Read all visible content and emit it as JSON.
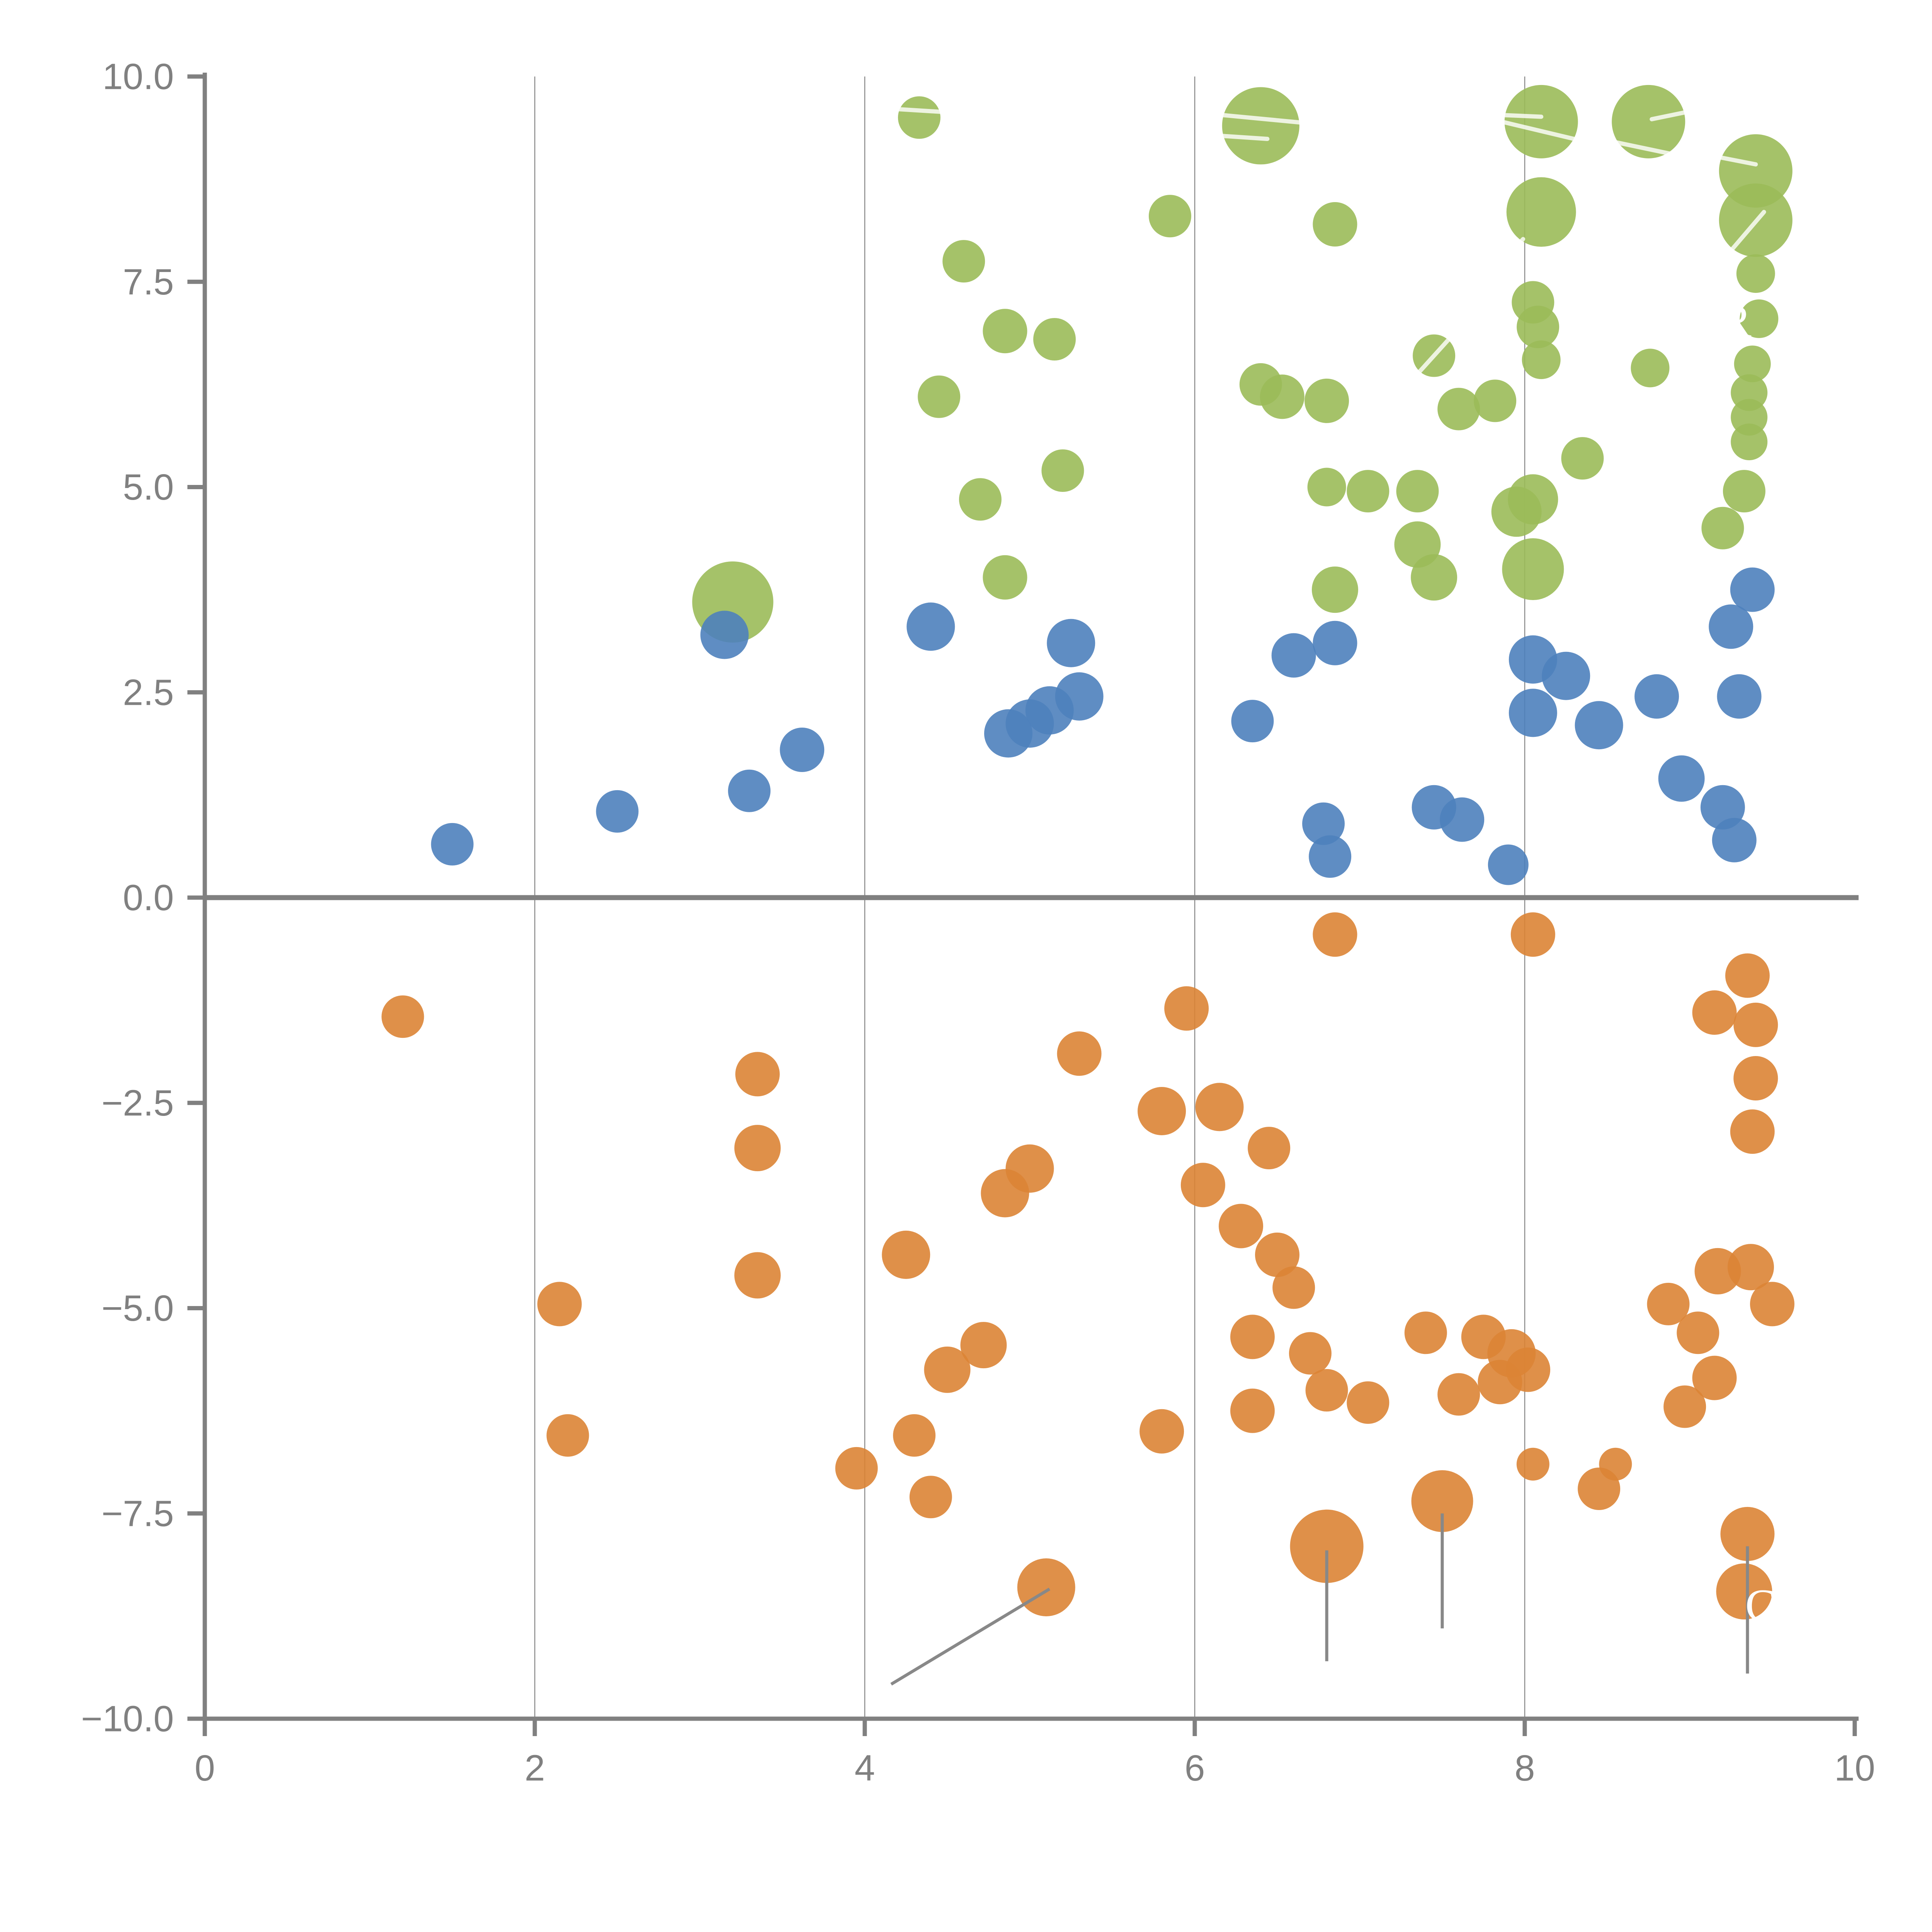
{
  "chart_data": {
    "type": "scatter",
    "title": "",
    "xlabel": "",
    "ylabel": "",
    "xlim": [
      0,
      10
    ],
    "ylim": [
      -10,
      10
    ],
    "x_ticks": [
      0,
      2,
      4,
      6,
      8,
      10
    ],
    "x_tick_labels": [
      "0",
      "2",
      "4",
      "6",
      "8",
      "10"
    ],
    "y_ticks": [
      10.0,
      7.5,
      5.0,
      2.5,
      0.0,
      -2.5,
      -5.0,
      -7.5,
      -10.0
    ],
    "y_tick_labels": [
      "10.0",
      "7.5",
      "5.0",
      "2.5",
      "0.0",
      "−2.5",
      "−5.0",
      "−7.5",
      "−10.0"
    ],
    "grid_x": [
      2,
      4,
      6,
      8
    ],
    "zero_line_y": 0,
    "legend_position": "none",
    "colors": {
      "green": "#9BBB59",
      "blue": "#4E81BD",
      "orange": "#DB8435",
      "axis": "#808080",
      "grid": "#888888",
      "leader_gray": "#888888",
      "leader_white": "#ffffff"
    },
    "series": [
      {
        "name": "green",
        "color": "#9BBB59",
        "points": [
          {
            "x": 4.33,
            "y": 9.5,
            "r": 11
          },
          {
            "x": 6.4,
            "y": 9.4,
            "r": 20
          },
          {
            "x": 8.1,
            "y": 9.45,
            "r": 19
          },
          {
            "x": 8.75,
            "y": 9.45,
            "r": 19
          },
          {
            "x": 9.4,
            "y": 8.85,
            "r": 19
          },
          {
            "x": 9.4,
            "y": 8.25,
            "r": 19
          },
          {
            "x": 9.4,
            "y": 7.6,
            "r": 10
          },
          {
            "x": 9.42,
            "y": 7.05,
            "r": 10
          },
          {
            "x": 6.85,
            "y": 8.2,
            "r": 11.5
          },
          {
            "x": 5.85,
            "y": 8.3,
            "r": 11
          },
          {
            "x": 4.6,
            "y": 7.75,
            "r": 11
          },
          {
            "x": 4.85,
            "y": 6.9,
            "r": 11.5
          },
          {
            "x": 5.15,
            "y": 6.8,
            "r": 11
          },
          {
            "x": 8.1,
            "y": 8.35,
            "r": 18
          },
          {
            "x": 8.05,
            "y": 7.25,
            "r": 11
          },
          {
            "x": 8.08,
            "y": 6.95,
            "r": 11
          },
          {
            "x": 8.1,
            "y": 6.55,
            "r": 10
          },
          {
            "x": 7.45,
            "y": 6.6,
            "r": 11
          },
          {
            "x": 8.76,
            "y": 6.45,
            "r": 10
          },
          {
            "x": 9.38,
            "y": 6.5,
            "r": 9.5
          },
          {
            "x": 9.36,
            "y": 6.15,
            "r": 9.5
          },
          {
            "x": 9.36,
            "y": 5.85,
            "r": 9.5
          },
          {
            "x": 9.36,
            "y": 5.55,
            "r": 9.5
          },
          {
            "x": 9.33,
            "y": 4.95,
            "r": 11
          },
          {
            "x": 9.2,
            "y": 4.5,
            "r": 11
          },
          {
            "x": 6.4,
            "y": 6.25,
            "r": 11
          },
          {
            "x": 6.53,
            "y": 6.1,
            "r": 11.5
          },
          {
            "x": 6.8,
            "y": 6.05,
            "r": 11.5
          },
          {
            "x": 7.6,
            "y": 5.95,
            "r": 11
          },
          {
            "x": 7.82,
            "y": 6.05,
            "r": 11
          },
          {
            "x": 4.45,
            "y": 6.1,
            "r": 11
          },
          {
            "x": 4.7,
            "y": 4.85,
            "r": 11
          },
          {
            "x": 5.2,
            "y": 5.2,
            "r": 11
          },
          {
            "x": 4.85,
            "y": 3.9,
            "r": 11.5
          },
          {
            "x": 6.8,
            "y": 5.0,
            "r": 10
          },
          {
            "x": 7.05,
            "y": 4.95,
            "r": 11
          },
          {
            "x": 7.35,
            "y": 4.95,
            "r": 11
          },
          {
            "x": 7.35,
            "y": 4.3,
            "r": 12
          },
          {
            "x": 7.45,
            "y": 3.9,
            "r": 12
          },
          {
            "x": 6.85,
            "y": 3.75,
            "r": 12
          },
          {
            "x": 7.95,
            "y": 4.7,
            "r": 13
          },
          {
            "x": 8.05,
            "y": 4.85,
            "r": 13
          },
          {
            "x": 8.05,
            "y": 4.0,
            "r": 16
          },
          {
            "x": 8.35,
            "y": 5.35,
            "r": 11
          },
          {
            "x": 3.2,
            "y": 3.6,
            "r": 21
          }
        ]
      },
      {
        "name": "blue",
        "color": "#4E81BD",
        "points": [
          {
            "x": 1.5,
            "y": 0.65,
            "r": 11
          },
          {
            "x": 2.5,
            "y": 1.05,
            "r": 11
          },
          {
            "x": 3.15,
            "y": 3.2,
            "r": 12.5
          },
          {
            "x": 3.3,
            "y": 1.3,
            "r": 11
          },
          {
            "x": 3.62,
            "y": 1.8,
            "r": 11.5
          },
          {
            "x": 4.4,
            "y": 3.3,
            "r": 12.5
          },
          {
            "x": 5.25,
            "y": 3.1,
            "r": 12.5
          },
          {
            "x": 5.3,
            "y": 2.45,
            "r": 12.5
          },
          {
            "x": 5.12,
            "y": 2.28,
            "r": 12.5
          },
          {
            "x": 5.0,
            "y": 2.12,
            "r": 12.5
          },
          {
            "x": 4.87,
            "y": 2.0,
            "r": 12.5
          },
          {
            "x": 6.35,
            "y": 2.15,
            "r": 11
          },
          {
            "x": 6.6,
            "y": 2.95,
            "r": 11.5
          },
          {
            "x": 6.85,
            "y": 3.1,
            "r": 11.5
          },
          {
            "x": 6.78,
            "y": 0.9,
            "r": 11
          },
          {
            "x": 6.82,
            "y": 0.5,
            "r": 11
          },
          {
            "x": 7.45,
            "y": 1.1,
            "r": 11.5
          },
          {
            "x": 7.62,
            "y": 0.95,
            "r": 11.5
          },
          {
            "x": 7.9,
            "y": 0.4,
            "r": 10.5
          },
          {
            "x": 8.05,
            "y": 2.9,
            "r": 12.5
          },
          {
            "x": 8.25,
            "y": 2.7,
            "r": 12.5
          },
          {
            "x": 8.05,
            "y": 2.25,
            "r": 12.5
          },
          {
            "x": 8.45,
            "y": 2.1,
            "r": 12.5
          },
          {
            "x": 8.8,
            "y": 2.45,
            "r": 11.5
          },
          {
            "x": 9.38,
            "y": 3.75,
            "r": 11.5
          },
          {
            "x": 9.25,
            "y": 3.3,
            "r": 11.5
          },
          {
            "x": 9.3,
            "y": 2.45,
            "r": 11.5
          },
          {
            "x": 8.95,
            "y": 1.45,
            "r": 12
          },
          {
            "x": 9.2,
            "y": 1.1,
            "r": 11.5
          },
          {
            "x": 9.27,
            "y": 0.7,
            "r": 11.5
          }
        ]
      },
      {
        "name": "orange",
        "color": "#DB8435",
        "points": [
          {
            "x": 1.2,
            "y": -1.45,
            "r": 11
          },
          {
            "x": 2.2,
            "y": -6.55,
            "r": 11
          },
          {
            "x": 2.15,
            "y": -4.95,
            "r": 11.5
          },
          {
            "x": 3.35,
            "y": -3.05,
            "r": 12
          },
          {
            "x": 3.35,
            "y": -2.15,
            "r": 11.5
          },
          {
            "x": 3.35,
            "y": -4.6,
            "r": 12
          },
          {
            "x": 3.95,
            "y": -6.95,
            "r": 11
          },
          {
            "x": 4.3,
            "y": -6.55,
            "r": 11
          },
          {
            "x": 4.4,
            "y": -7.3,
            "r": 11
          },
          {
            "x": 5.1,
            "y": -8.4,
            "r": 15
          },
          {
            "x": 4.25,
            "y": -4.35,
            "r": 12.5
          },
          {
            "x": 4.5,
            "y": -5.75,
            "r": 12
          },
          {
            "x": 4.72,
            "y": -5.45,
            "r": 12
          },
          {
            "x": 4.85,
            "y": -3.6,
            "r": 12.5
          },
          {
            "x": 5.0,
            "y": -3.3,
            "r": 12.5
          },
          {
            "x": 5.3,
            "y": -1.9,
            "r": 11.5
          },
          {
            "x": 5.8,
            "y": -2.6,
            "r": 12.5
          },
          {
            "x": 6.15,
            "y": -2.55,
            "r": 12.5
          },
          {
            "x": 5.95,
            "y": -1.35,
            "r": 11.5
          },
          {
            "x": 6.05,
            "y": -3.5,
            "r": 11.5
          },
          {
            "x": 6.45,
            "y": -3.05,
            "r": 11
          },
          {
            "x": 6.28,
            "y": -4.0,
            "r": 11.5
          },
          {
            "x": 6.5,
            "y": -4.35,
            "r": 11.5
          },
          {
            "x": 6.6,
            "y": -4.75,
            "r": 11
          },
          {
            "x": 6.85,
            "y": -0.45,
            "r": 11.5
          },
          {
            "x": 8.05,
            "y": -0.45,
            "r": 11.5
          },
          {
            "x": 6.35,
            "y": -5.35,
            "r": 11.5
          },
          {
            "x": 6.35,
            "y": -6.25,
            "r": 11.5
          },
          {
            "x": 6.7,
            "y": -5.55,
            "r": 11
          },
          {
            "x": 6.8,
            "y": -6.0,
            "r": 11
          },
          {
            "x": 7.05,
            "y": -6.15,
            "r": 11
          },
          {
            "x": 7.4,
            "y": -5.3,
            "r": 11
          },
          {
            "x": 7.6,
            "y": -6.05,
            "r": 11
          },
          {
            "x": 7.75,
            "y": -5.35,
            "r": 11.5
          },
          {
            "x": 7.92,
            "y": -5.55,
            "r": 12.5
          },
          {
            "x": 7.85,
            "y": -5.9,
            "r": 11.5
          },
          {
            "x": 8.02,
            "y": -5.75,
            "r": 11.5
          },
          {
            "x": 8.05,
            "y": -6.9,
            "r": 8.5
          },
          {
            "x": 8.55,
            "y": -6.9,
            "r": 8.5
          },
          {
            "x": 8.45,
            "y": -7.2,
            "r": 11
          },
          {
            "x": 6.8,
            "y": -7.9,
            "r": 19
          },
          {
            "x": 7.5,
            "y": -7.35,
            "r": 16
          },
          {
            "x": 9.35,
            "y": -7.75,
            "r": 14
          },
          {
            "x": 9.33,
            "y": -8.45,
            "r": 14.5
          },
          {
            "x": 9.17,
            "y": -4.55,
            "r": 12
          },
          {
            "x": 9.37,
            "y": -4.5,
            "r": 12
          },
          {
            "x": 9.5,
            "y": -4.95,
            "r": 11.5
          },
          {
            "x": 8.87,
            "y": -4.95,
            "r": 11
          },
          {
            "x": 9.05,
            "y": -5.3,
            "r": 11
          },
          {
            "x": 9.15,
            "y": -5.85,
            "r": 11.5
          },
          {
            "x": 8.97,
            "y": -6.2,
            "r": 11
          },
          {
            "x": 5.8,
            "y": -6.5,
            "r": 11.5
          },
          {
            "x": 9.35,
            "y": -0.95,
            "r": 11.5
          },
          {
            "x": 9.15,
            "y": -1.4,
            "r": 11.5
          },
          {
            "x": 9.4,
            "y": -1.55,
            "r": 11.5
          },
          {
            "x": 9.4,
            "y": -2.2,
            "r": 11.5
          },
          {
            "x": 9.38,
            "y": -2.85,
            "r": 11.5
          }
        ]
      }
    ],
    "annotations": {
      "white_leader_lines": [
        {
          "x1": 4.06,
          "y1": 9.62,
          "x2": 4.62,
          "y2": 9.55
        },
        {
          "x1": 6.17,
          "y1": 9.53,
          "x2": 6.64,
          "y2": 9.44
        },
        {
          "x1": 6.14,
          "y1": 9.28,
          "x2": 6.44,
          "y2": 9.24
        },
        {
          "x1": 7.87,
          "y1": 9.53,
          "x2": 8.1,
          "y2": 9.51
        },
        {
          "x1": 7.86,
          "y1": 9.45,
          "x2": 8.34,
          "y2": 9.22
        },
        {
          "x1": 8.77,
          "y1": 9.48,
          "x2": 9.06,
          "y2": 9.6
        },
        {
          "x1": 8.55,
          "y1": 9.2,
          "x2": 8.93,
          "y2": 9.04
        },
        {
          "x1": 9.12,
          "y1": 9.04,
          "x2": 9.4,
          "y2": 8.93
        },
        {
          "x1": 9.45,
          "y1": 8.35,
          "x2": 9.25,
          "y2": 7.88
        },
        {
          "x1": 7.99,
          "y1": 8.02,
          "x2": 7.83,
          "y2": 7.66
        },
        {
          "x1": 7.36,
          "y1": 6.4,
          "x2": 7.54,
          "y2": 6.8
        }
      ],
      "gray_leader_lines": [
        {
          "x1": 5.12,
          "y1": -8.42,
          "x2": 4.16,
          "y2": -9.58
        },
        {
          "x1": 6.8,
          "y1": -7.95,
          "x2": 6.8,
          "y2": -9.3
        },
        {
          "x1": 7.5,
          "y1": -7.5,
          "x2": 7.5,
          "y2": -8.9
        },
        {
          "x1": 9.35,
          "y1": -7.9,
          "x2": 9.35,
          "y2": -9.45
        }
      ],
      "letters": [
        {
          "text": "R",
          "x": 9.28,
          "y": 7.02
        },
        {
          "text": "C",
          "x": 9.43,
          "y": -8.62
        }
      ]
    }
  }
}
